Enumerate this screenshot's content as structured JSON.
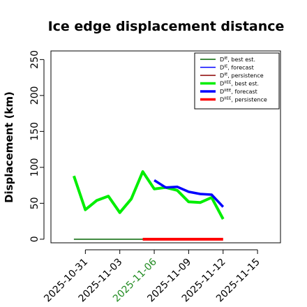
{
  "chart_data": {
    "type": "line",
    "title": "Ice edge displacement distance",
    "xlabel": "",
    "ylabel": "Displacement (km)",
    "ylim": [
      -5,
      262
    ],
    "xlim": [
      "2025-10-28",
      "2025-11-17"
    ],
    "yticks": [
      0,
      50,
      100,
      150,
      200,
      250
    ],
    "xticks": [
      "2025-10-31",
      "2025-11-03",
      "2025-11-06",
      "2025-11-09",
      "2025-11-12",
      "2025-11-15"
    ],
    "highlighted_xtick": "2025-11-06",
    "highlight_color": "#228b22",
    "grid": false,
    "legend_position": "top-right",
    "series": [
      {
        "name": "D^IE, best est.",
        "legend_sup": "IE",
        "legend_rest": ", best est.",
        "color": "#006400",
        "width": 1.5,
        "x": [
          "2025-10-30",
          "2025-10-31",
          "2025-11-01",
          "2025-11-02",
          "2025-11-03",
          "2025-11-04",
          "2025-11-05",
          "2025-11-06"
        ],
        "y": [
          0,
          0,
          0,
          0,
          0,
          0,
          0,
          0
        ]
      },
      {
        "name": "D^IE, forecast",
        "legend_sup": "IE",
        "legend_rest": ", forecast",
        "color": "#0000ff",
        "width": 1.5,
        "x": [],
        "y": []
      },
      {
        "name": "D^IE, persistence",
        "legend_sup": "IE",
        "legend_rest": ", persistence",
        "color": "#8b0000",
        "width": 1.5,
        "x": [],
        "y": []
      },
      {
        "name": "D^IIEE, best est.",
        "legend_sup": "IIEE",
        "legend_rest": ", best est.",
        "color": "#00ee00",
        "width": 4,
        "x": [
          "2025-10-30",
          "2025-10-31",
          "2025-11-01",
          "2025-11-02",
          "2025-11-03",
          "2025-11-04",
          "2025-11-05",
          "2025-11-06",
          "2025-11-07",
          "2025-11-08",
          "2025-11-09",
          "2025-11-10",
          "2025-11-11",
          "2025-11-12"
        ],
        "y": [
          88,
          41,
          54,
          60,
          37,
          56,
          94,
          70,
          72,
          68,
          52,
          51,
          58,
          28
        ]
      },
      {
        "name": "D^IIEE, forecast",
        "legend_sup": "IIEE",
        "legend_rest": ", forecast",
        "color": "#0000ff",
        "width": 3.5,
        "x": [
          "2025-11-06",
          "2025-11-07",
          "2025-11-08",
          "2025-11-09",
          "2025-11-10",
          "2025-11-11",
          "2025-11-12"
        ],
        "y": [
          82,
          72,
          73,
          66,
          63,
          62,
          45
        ]
      },
      {
        "name": "D^IIEE, persistence",
        "legend_sup": "IIEE",
        "legend_rest": ", persistence",
        "color": "#ff0000",
        "width": 4,
        "x": [
          "2025-11-05",
          "2025-11-06",
          "2025-11-07",
          "2025-11-08",
          "2025-11-09",
          "2025-11-10",
          "2025-11-11",
          "2025-11-12"
        ],
        "y": [
          0,
          0,
          0,
          0,
          0,
          0,
          0,
          0
        ]
      }
    ]
  }
}
